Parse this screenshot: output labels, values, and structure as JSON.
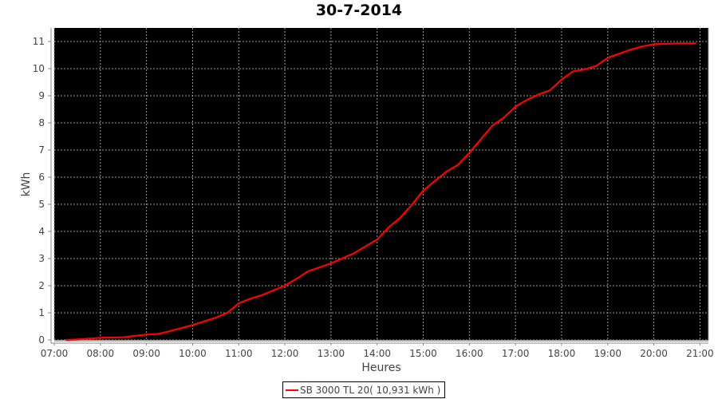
{
  "chart_data": {
    "type": "line",
    "title": "30-7-2014",
    "xlabel": "Heures",
    "ylabel": "kWh",
    "x_ticks": [
      "07:00",
      "08:00",
      "09:00",
      "10:00",
      "11:00",
      "12:00",
      "13:00",
      "14:00",
      "15:00",
      "16:00",
      "17:00",
      "18:00",
      "19:00",
      "20:00",
      "21:00"
    ],
    "y_ticks": [
      0,
      1,
      2,
      3,
      4,
      5,
      6,
      7,
      8,
      9,
      10,
      11
    ],
    "xlim": [
      "07:00",
      "21:11"
    ],
    "ylim": [
      0,
      11.5
    ],
    "grid": true,
    "background": "#000000",
    "grid_color": "#999999",
    "legend_placement": "bottom",
    "series": [
      {
        "name": "SB 3000 TL 20( 10,931 kWh )",
        "color": "#ff0000",
        "x": [
          "07:15",
          "07:30",
          "08:00",
          "08:30",
          "09:00",
          "09:15",
          "09:30",
          "10:00",
          "10:30",
          "10:45",
          "11:00",
          "11:15",
          "11:30",
          "12:00",
          "12:15",
          "12:30",
          "13:00",
          "13:30",
          "14:00",
          "14:15",
          "14:30",
          "14:45",
          "15:00",
          "15:15",
          "15:30",
          "15:45",
          "16:00",
          "16:15",
          "16:30",
          "16:45",
          "17:00",
          "17:15",
          "17:30",
          "17:45",
          "18:00",
          "18:15",
          "18:30",
          "18:45",
          "19:00",
          "19:15",
          "19:30",
          "19:45",
          "20:00",
          "20:30",
          "20:55"
        ],
        "values": [
          0.0,
          0.02,
          0.08,
          0.1,
          0.2,
          0.22,
          0.32,
          0.55,
          0.82,
          1.0,
          1.35,
          1.52,
          1.65,
          2.0,
          2.25,
          2.53,
          2.82,
          3.2,
          3.7,
          4.15,
          4.5,
          4.98,
          5.5,
          5.86,
          6.2,
          6.45,
          6.9,
          7.4,
          7.9,
          8.2,
          8.6,
          8.85,
          9.05,
          9.2,
          9.6,
          9.9,
          9.97,
          10.1,
          10.4,
          10.55,
          10.7,
          10.82,
          10.9,
          10.93,
          10.93
        ]
      }
    ]
  }
}
